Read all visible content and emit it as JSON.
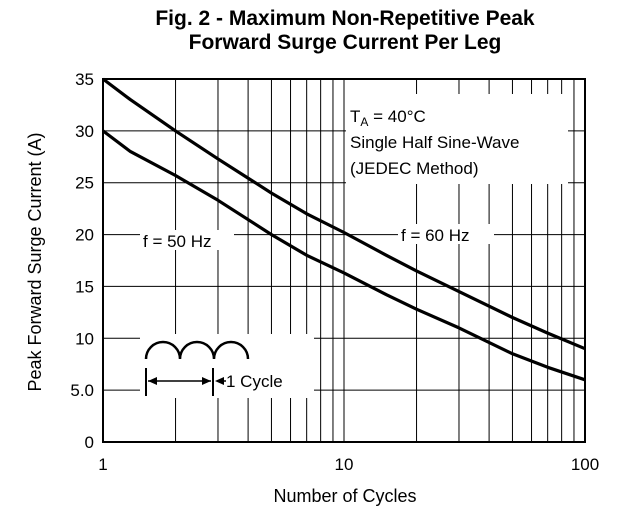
{
  "chart_data": {
    "type": "line",
    "title_line1": "Fig. 2 - Maximum Non-Repetitive Peak",
    "title_line2": "Forward Surge Current Per Leg",
    "xlabel": "Number of Cycles",
    "ylabel": "Peak Forward Surge Current (A)",
    "xscale": "log",
    "xlim": [
      1,
      100
    ],
    "ylim": [
      0,
      35
    ],
    "x_ticks": [
      1,
      10,
      100
    ],
    "x_tick_labels": [
      "1",
      "10",
      "100"
    ],
    "y_ticks": [
      0,
      5,
      10,
      15,
      20,
      25,
      30,
      35
    ],
    "y_tick_labels": [
      "0",
      "5.0",
      "10",
      "15",
      "20",
      "25",
      "30",
      "35"
    ],
    "grid": true,
    "series": [
      {
        "name": "f = 60 Hz",
        "x": [
          1,
          1.3,
          2,
          3,
          5,
          7,
          10,
          15,
          20,
          30,
          50,
          70,
          100
        ],
        "y": [
          35,
          33,
          30,
          27.3,
          24,
          22,
          20.2,
          18,
          16.5,
          14.5,
          12,
          10.5,
          9
        ]
      },
      {
        "name": "f = 50 Hz",
        "x": [
          1,
          1.3,
          2,
          3,
          5,
          7,
          10,
          15,
          20,
          30,
          50,
          70,
          100
        ],
        "y": [
          30,
          28,
          25.7,
          23.3,
          20,
          18,
          16.3,
          14.2,
          12.8,
          11,
          8.5,
          7.2,
          6
        ]
      }
    ],
    "annotations": {
      "condition_line1_prefix": "T",
      "condition_line1_sub": "A",
      "condition_line1_rest": " = 40°C",
      "condition_line2": "Single Half Sine-Wave",
      "condition_line3": "(JEDEC Method)",
      "label_50hz": "f = 50 Hz",
      "label_60hz": "f = 60 Hz",
      "cycle_label": "1 Cycle"
    }
  }
}
